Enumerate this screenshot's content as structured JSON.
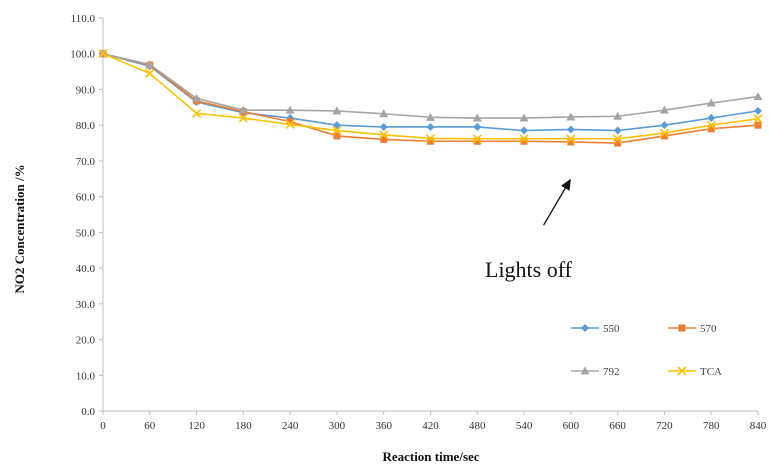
{
  "chart_data": {
    "type": "line",
    "title": "",
    "xlabel": "Reaction time/sec",
    "ylabel": "NO2 Concentration /%",
    "x": [
      0,
      60,
      120,
      180,
      240,
      300,
      360,
      420,
      480,
      540,
      600,
      660,
      720,
      780,
      840
    ],
    "xlim": [
      0,
      840
    ],
    "ylim": [
      0,
      110
    ],
    "y_ticks": [
      "0.0",
      "10.0",
      "20.0",
      "30.0",
      "40.0",
      "50.0",
      "60.0",
      "70.0",
      "80.0",
      "90.0",
      "100.0",
      "110.0"
    ],
    "x_ticks": [
      "0",
      "60",
      "120",
      "180",
      "240",
      "300",
      "360",
      "420",
      "480",
      "540",
      "600",
      "660",
      "720",
      "780",
      "840"
    ],
    "grid": false,
    "legend_position": "bottom-right",
    "series": [
      {
        "name": "550",
        "color": "#5b9bd5",
        "marker": "diamond",
        "values": [
          100,
          96.5,
          86.5,
          83.5,
          82,
          80,
          79.5,
          79.5,
          79.5,
          78.5,
          78.8,
          78.5,
          80,
          82,
          84
        ]
      },
      {
        "name": "570",
        "color": "#ed7d31",
        "marker": "square",
        "values": [
          100,
          96.8,
          86.8,
          83.8,
          81,
          77,
          76,
          75.5,
          75.5,
          75.5,
          75.3,
          75,
          77,
          79,
          80
        ]
      },
      {
        "name": "792",
        "color": "#a5a5a5",
        "marker": "triangle",
        "values": [
          100,
          97,
          87.5,
          84.2,
          84.2,
          84,
          83.2,
          82.2,
          82,
          82,
          82.3,
          82.5,
          84.2,
          86.2,
          88
        ]
      },
      {
        "name": "TCA",
        "color": "#ffc000",
        "marker": "x",
        "values": [
          100,
          94.5,
          83.3,
          82,
          80.2,
          78.5,
          77.3,
          76.3,
          76.2,
          76.2,
          76.2,
          76.2,
          77.8,
          80,
          81.8
        ]
      }
    ],
    "annotations": [
      {
        "text": "Lights off",
        "arrow_to": [
          600,
          65
        ],
        "arrow_from": [
          565,
          52
        ]
      }
    ]
  }
}
